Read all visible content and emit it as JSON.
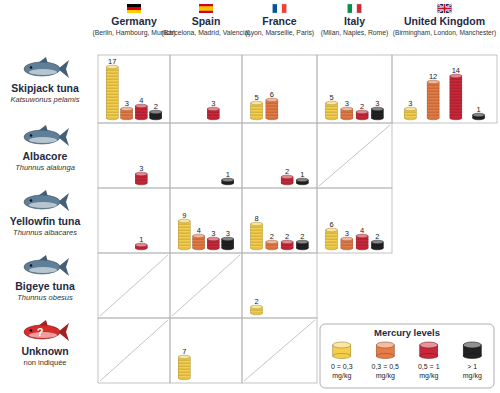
{
  "chart_data": {
    "type": "pictogram",
    "data_labels": true,
    "columns": [
      {
        "name": "Germany",
        "cities": "(Berlin, Hambourg, Munich)"
      },
      {
        "name": "Spain",
        "cities": "(Barcelona, Madrid, Valencia)"
      },
      {
        "name": "France",
        "cities": "(Lyon, Marseille, Paris)"
      },
      {
        "name": "Italy",
        "cities": "(Milan, Naples, Rome)"
      },
      {
        "name": "United Kingdom",
        "cities": "(Birmingham, London, Manchester)"
      }
    ],
    "rows": [
      {
        "name": "Skipjack tuna",
        "latin": "Katsuwonus pelamis",
        "cells": [
          [
            17,
            3,
            4,
            2
          ],
          [
            null,
            null,
            3,
            null
          ],
          [
            5,
            6,
            null,
            null
          ],
          [
            5,
            3,
            2,
            3
          ],
          [
            3,
            12,
            14,
            1
          ]
        ]
      },
      {
        "name": "Albacore",
        "latin": "Thunnus alalunga",
        "cells": [
          [
            null,
            null,
            3,
            null
          ],
          [
            null,
            null,
            null,
            1
          ],
          [
            null,
            null,
            2,
            1
          ],
          null
        ]
      },
      {
        "name": "Yellowfin tuna",
        "latin": "Thunnus albacares",
        "cells": [
          [
            null,
            null,
            1,
            null
          ],
          [
            9,
            4,
            3,
            3
          ],
          [
            8,
            2,
            2,
            2
          ],
          [
            6,
            3,
            4,
            2
          ]
        ]
      },
      {
        "name": "Bigeye tuna",
        "latin": "Thunnus obesus",
        "cells": [
          null,
          null,
          [
            2,
            null,
            null,
            null
          ]
        ]
      },
      {
        "name": "Unknown",
        "latin": "non indiquée",
        "icon_text": "?",
        "cells": [
          null,
          [
            7,
            null,
            null,
            null
          ],
          null
        ]
      }
    ],
    "legend_title": "Mercury levels",
    "series": [
      {
        "name": "0 = 0,3 mg/kg",
        "color": "#f5cf4b"
      },
      {
        "name": "0,3 = 0,5 mg/kg",
        "color": "#e57b45"
      },
      {
        "name": "0,5 = 1 mg/kg",
        "color": "#c8283a"
      },
      {
        "name": "> 1 mg/kg",
        "color": "#222222"
      }
    ]
  }
}
